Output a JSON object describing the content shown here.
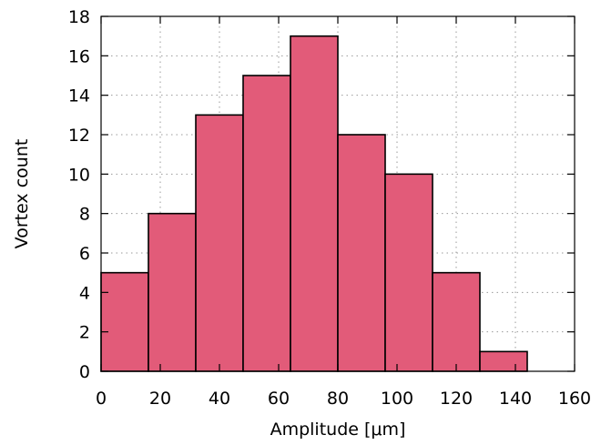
{
  "chart_data": {
    "type": "bar",
    "title": "",
    "xlabel": "Amplitude [μm]",
    "ylabel": "Vortex count",
    "xlim": [
      0,
      160
    ],
    "ylim": [
      0,
      18
    ],
    "grid": true,
    "bin_width": 16,
    "bins": [
      {
        "x0": 0,
        "x1": 16,
        "value": 5
      },
      {
        "x0": 16,
        "x1": 32,
        "value": 8
      },
      {
        "x0": 32,
        "x1": 48,
        "value": 13
      },
      {
        "x0": 48,
        "x1": 64,
        "value": 15
      },
      {
        "x0": 64,
        "x1": 80,
        "value": 17
      },
      {
        "x0": 80,
        "x1": 96,
        "value": 12
      },
      {
        "x0": 96,
        "x1": 112,
        "value": 10
      },
      {
        "x0": 112,
        "x1": 128,
        "value": 5
      },
      {
        "x0": 128,
        "x1": 144,
        "value": 1
      }
    ],
    "x_ticks": [
      "0",
      "20",
      "40",
      "60",
      "80",
      "100",
      "120",
      "140",
      "160"
    ],
    "y_ticks": [
      "0",
      "2",
      "4",
      "6",
      "8",
      "10",
      "12",
      "14",
      "16",
      "18"
    ],
    "bar_color": "#e25b79",
    "edge_color": "#000000"
  }
}
